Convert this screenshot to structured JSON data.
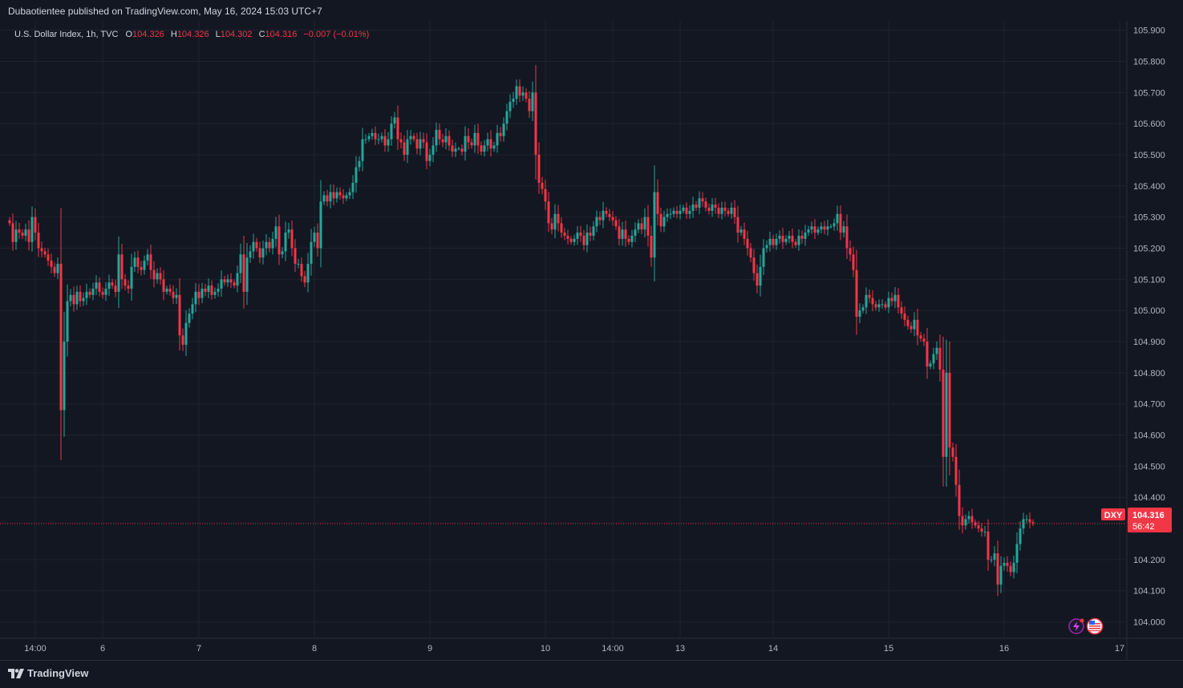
{
  "header": {
    "text": "Dubaotientee published on TradingView.com, May 16, 2024 15:03 UTC+7"
  },
  "legend": {
    "symbol": "U.S. Dollar Index, 1h, TVC",
    "o_label": "O",
    "o_value": "104.326",
    "h_label": "H",
    "h_value": "104.326",
    "l_label": "L",
    "l_value": "104.302",
    "c_label": "C",
    "c_value": "104.316",
    "change": "−0.007 (−0.01%)"
  },
  "price_tag": {
    "ticker": "DXY",
    "price": "104.316",
    "countdown": "56:42"
  },
  "footer": {
    "brand": "TradingView"
  },
  "colors": {
    "background": "#131722",
    "grid": "#1f2330",
    "up": "#26a69a",
    "down": "#f23645",
    "text": "#d1d4dc",
    "axis_text": "#b2b5be"
  },
  "chart_data": {
    "type": "candlestick",
    "timeframe": "1h",
    "ylim": [
      103.95,
      105.93
    ],
    "y_ticks": [
      "105.900",
      "105.800",
      "105.700",
      "105.600",
      "105.500",
      "105.400",
      "105.300",
      "105.200",
      "105.100",
      "105.000",
      "104.900",
      "104.800",
      "104.700",
      "104.600",
      "104.500",
      "104.400",
      "104.200",
      "104.100",
      "104.000"
    ],
    "x_ticks": [
      {
        "label": "14:00",
        "i": 8
      },
      {
        "label": "6",
        "i": 29
      },
      {
        "label": "7",
        "i": 59
      },
      {
        "label": "8",
        "i": 95
      },
      {
        "label": "9",
        "i": 131
      },
      {
        "label": "10",
        "i": 167
      },
      {
        "label": "14:00",
        "i": 188
      },
      {
        "label": "13",
        "i": 209
      },
      {
        "label": "14",
        "i": 238
      },
      {
        "label": "15",
        "i": 274
      },
      {
        "label": "16",
        "i": 310
      },
      {
        "label": "17",
        "i": 346
      }
    ],
    "last_price": 104.316,
    "closes": [
      105.28,
      105.22,
      105.26,
      105.25,
      105.24,
      105.26,
      105.22,
      105.3,
      105.25,
      105.2,
      105.19,
      105.18,
      105.16,
      105.14,
      105.12,
      105.15,
      104.68,
      104.9,
      105.03,
      105.05,
      105.02,
      105.06,
      105.03,
      105.04,
      105.06,
      105.05,
      105.07,
      105.09,
      105.06,
      105.05,
      105.07,
      105.09,
      105.08,
      105.06,
      105.18,
      105.1,
      105.08,
      105.07,
      105.14,
      105.17,
      105.14,
      105.13,
      105.16,
      105.18,
      105.13,
      105.1,
      105.12,
      105.1,
      105.06,
      105.07,
      105.06,
      105.04,
      105.05,
      104.92,
      104.89,
      104.96,
      104.99,
      105.02,
      105.06,
      105.04,
      105.07,
      105.06,
      105.08,
      105.05,
      105.06,
      105.07,
      105.1,
      105.09,
      105.1,
      105.09,
      105.08,
      105.12,
      105.18,
      105.06,
      105.17,
      105.19,
      105.22,
      105.2,
      105.17,
      105.2,
      105.22,
      105.2,
      105.23,
      105.27,
      105.18,
      105.19,
      105.25,
      105.26,
      105.2,
      105.15,
      105.15,
      105.11,
      105.09,
      105.15,
      105.22,
      105.25,
      105.2,
      105.35,
      105.37,
      105.35,
      105.38,
      105.36,
      105.38,
      105.37,
      105.36,
      105.37,
      105.38,
      105.41,
      105.46,
      105.48,
      105.55,
      105.55,
      105.56,
      105.57,
      105.55,
      105.55,
      105.56,
      105.53,
      105.55,
      105.6,
      105.62,
      105.55,
      105.54,
      105.5,
      105.55,
      105.56,
      105.55,
      105.52,
      105.55,
      105.54,
      105.48,
      105.5,
      105.53,
      105.58,
      105.55,
      105.54,
      105.56,
      105.53,
      105.51,
      105.52,
      105.52,
      105.51,
      105.56,
      105.54,
      105.53,
      105.57,
      105.53,
      105.51,
      105.53,
      105.55,
      105.52,
      105.53,
      105.57,
      105.56,
      105.6,
      105.64,
      105.67,
      105.68,
      105.72,
      105.69,
      105.7,
      105.68,
      105.64,
      105.7,
      105.5,
      105.41,
      105.39,
      105.35,
      105.28,
      105.26,
      105.31,
      105.28,
      105.25,
      105.24,
      105.23,
      105.22,
      105.23,
      105.25,
      105.24,
      105.21,
      105.25,
      105.24,
      105.27,
      105.3,
      105.29,
      105.32,
      105.31,
      105.3,
      105.29,
      105.27,
      105.23,
      105.26,
      105.23,
      105.22,
      105.24,
      105.26,
      105.28,
      105.26,
      105.3,
      105.24,
      105.17,
      105.38,
      105.31,
      105.27,
      105.3,
      105.31,
      105.31,
      105.32,
      105.31,
      105.32,
      105.33,
      105.31,
      105.32,
      105.34,
      105.33,
      105.36,
      105.35,
      105.33,
      105.32,
      105.34,
      105.33,
      105.31,
      105.33,
      105.32,
      105.31,
      105.33,
      105.3,
      105.25,
      105.26,
      105.23,
      105.2,
      105.17,
      105.12,
      105.08,
      105.14,
      105.2,
      105.21,
      105.23,
      105.21,
      105.23,
      105.24,
      105.22,
      105.23,
      105.24,
      105.22,
      105.21,
      105.24,
      105.23,
      105.25,
      105.26,
      105.27,
      105.25,
      105.26,
      105.27,
      105.26,
      105.27,
      105.27,
      105.28,
      105.31,
      105.25,
      105.27,
      105.2,
      105.18,
      105.13,
      104.98,
      105.0,
      105.01,
      105.05,
      105.04,
      105.02,
      105.01,
      105.02,
      105.02,
      105.01,
      105.04,
      105.03,
      105.05,
      105.01,
      104.99,
      104.97,
      104.95,
      104.94,
      104.97,
      104.92,
      104.91,
      104.9,
      104.82,
      104.83,
      104.86,
      104.88,
      104.81,
      104.53,
      104.8,
      104.56,
      104.53,
      104.44,
      104.34,
      104.31,
      104.33,
      104.34,
      104.32,
      104.31,
      104.3,
      104.29,
      104.29,
      104.2,
      104.2,
      104.22,
      104.12,
      104.18,
      104.19,
      104.18,
      104.16,
      104.19,
      104.25,
      104.3,
      104.33,
      104.33,
      104.32,
      104.316
    ]
  }
}
